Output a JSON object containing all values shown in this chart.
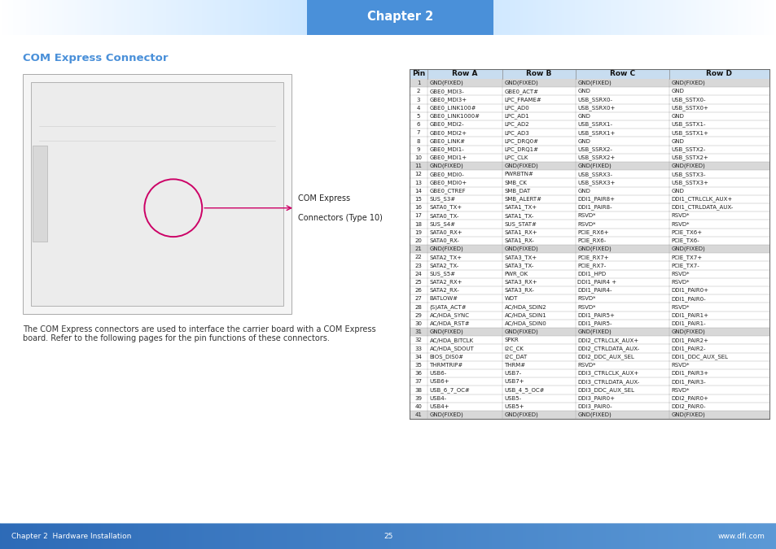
{
  "title": "Chapter 2",
  "section_title": "COM Express Connector",
  "footer_left": "Chapter 2  Hardware Installation",
  "footer_right": "www.dfi.com",
  "footer_center": "25",
  "description1": "The COM Express connectors are used to interface the carrier board with a COM Express",
  "description2": "board. Refer to the following pages for the pin functions of these connectors.",
  "connector_label_line1": "COM Express",
  "connector_label_line2": "Connectors (Type 10)",
  "table_headers": [
    "Pin",
    "Row A",
    "Row B",
    "Row C",
    "Row D"
  ],
  "table_data": [
    [
      "1",
      "GND(FIXED)",
      "GND(FIXED)",
      "GND(FIXED)",
      "GND(FIXED)"
    ],
    [
      "2",
      "GBE0_MDI3-",
      "GBE0_ACT#",
      "GND",
      "GND"
    ],
    [
      "3",
      "GBE0_MDI3+",
      "LPC_FRAME#",
      "USB_SSRX0-",
      "USB_SSTX0-"
    ],
    [
      "4",
      "GBE0_LINK100#",
      "LPC_AD0",
      "USB_SSRX0+",
      "USB_SSTX0+"
    ],
    [
      "5",
      "GBE0_LINK1000#",
      "LPC_AD1",
      "GND",
      "GND"
    ],
    [
      "6",
      "GBE0_MDI2-",
      "LPC_AD2",
      "USB_SSRX1-",
      "USB_SSTX1-"
    ],
    [
      "7",
      "GBE0_MDI2+",
      "LPC_AD3",
      "USB_SSRX1+",
      "USB_SSTX1+"
    ],
    [
      "8",
      "GBE0_LINK#",
      "LPC_DRQ0#",
      "GND",
      "GND"
    ],
    [
      "9",
      "GBE0_MDI1-",
      "LPC_DRQ1#",
      "USB_SSRX2-",
      "USB_SSTX2-"
    ],
    [
      "10",
      "GBE0_MDI1+",
      "LPC_CLK",
      "USB_SSRX2+",
      "USB_SSTX2+"
    ],
    [
      "11",
      "GND(FIXED)",
      "GND(FIXED)",
      "GND(FIXED)",
      "GND(FIXED)"
    ],
    [
      "12",
      "GBE0_MDI0-",
      "PWRBTN#",
      "USB_SSRX3-",
      "USB_SSTX3-"
    ],
    [
      "13",
      "GBE0_MDI0+",
      "SMB_CK",
      "USB_SSRX3+",
      "USB_SSTX3+"
    ],
    [
      "14",
      "GBE0_CTREF",
      "SMB_DAT",
      "GND",
      "GND"
    ],
    [
      "15",
      "SUS_S3#",
      "SMB_ALERT#",
      "DDI1_PAIR8+",
      "DDI1_CTRLCLK_AUX+"
    ],
    [
      "16",
      "SATA0_TX+",
      "SATA1_TX+",
      "DDI1_PAIR8-",
      "DDI1_CTRLDATA_AUX-"
    ],
    [
      "17",
      "SATA0_TX-",
      "SATA1_TX-",
      "RSVD*",
      "RSVD*"
    ],
    [
      "18",
      "SUS_S4#",
      "SUS_STAT#",
      "RSVD*",
      "RSVD*"
    ],
    [
      "19",
      "SATA0_RX+",
      "SATA1_RX+",
      "PCIE_RX6+",
      "PCIE_TX6+"
    ],
    [
      "20",
      "SATA0_RX-",
      "SATA1_RX-",
      "PCIE_RX6-",
      "PCIE_TX6-"
    ],
    [
      "21",
      "GND(FIXED)",
      "GND(FIXED)",
      "GND(FIXED)",
      "GND(FIXED)"
    ],
    [
      "22",
      "SATA2_TX+",
      "SATA3_TX+",
      "PCIE_RX7+",
      "PCIE_TX7+"
    ],
    [
      "23",
      "SATA2_TX-",
      "SATA3_TX-",
      "PCIE_RX7-",
      "PCIE_TX7-"
    ],
    [
      "24",
      "SUS_S5#",
      "PWR_OK",
      "DDI1_HPD",
      "RSVD*"
    ],
    [
      "25",
      "SATA2_RX+",
      "SATA3_RX+",
      "DDI1_PAIR4 +",
      "RSVD*"
    ],
    [
      "26",
      "SATA2_RX-",
      "SATA3_RX-",
      "DDI1_PAIR4-",
      "DDI1_PAIR0+"
    ],
    [
      "27",
      "BATLOW#",
      "WDT",
      "RSVD*",
      "DDI1_PAIR0-"
    ],
    [
      "28",
      "(S)ATA_ACT#",
      "AC/HDA_SDIN2",
      "RSVD*",
      "RSVD*"
    ],
    [
      "29",
      "AC/HDA_SYNC",
      "AC/HDA_SDIN1",
      "DDI1_PAIR5+",
      "DDI1_PAIR1+"
    ],
    [
      "30",
      "AC/HDA_RST#",
      "AC/HDA_SDIN0",
      "DDI1_PAIR5-",
      "DDI1_PAIR1-"
    ],
    [
      "31",
      "GND(FIXED)",
      "GND(FIXED)",
      "GND(FIXED)",
      "GND(FIXED)"
    ],
    [
      "32",
      "AC/HDA_BITCLK",
      "SPKR",
      "DDI2_CTRLCLK_AUX+",
      "DDI1_PAIR2+"
    ],
    [
      "33",
      "AC/HDA_SDOUT",
      "I2C_CK",
      "DDI2_CTRLDATA_AUX-",
      "DDI1_PAIR2-"
    ],
    [
      "34",
      "BIOS_DIS0#",
      "I2C_DAT",
      "DDI2_DDC_AUX_SEL",
      "DDI1_DDC_AUX_SEL"
    ],
    [
      "35",
      "THRMTRIP#",
      "THRM#",
      "RSVD*",
      "RSVD*"
    ],
    [
      "36",
      "USB6-",
      "USB7-",
      "DDI3_CTRLCLK_AUX+",
      "DDI1_PAIR3+"
    ],
    [
      "37",
      "USB6+",
      "USB7+",
      "DDI3_CTRLDATA_AUX-",
      "DDI1_PAIR3-"
    ],
    [
      "38",
      "USB_6_7_OC#",
      "USB_4_5_OC#",
      "DDI3_DDC_AUX_SEL",
      "RSVD*"
    ],
    [
      "39",
      "USB4-",
      "USB5-",
      "DDI3_PAIR0+",
      "DDI2_PAIR0+"
    ],
    [
      "40",
      "USB4+",
      "USB5+",
      "DDI3_PAIR0-",
      "DDI2_PAIR0-"
    ],
    [
      "41",
      "GND(FIXED)",
      "GND(FIXED)",
      "GND(FIXED)",
      "GND(FIXED)"
    ]
  ],
  "shaded_rows": [
    0,
    10,
    20,
    30,
    40
  ],
  "shade_color": "#d8d8d8",
  "table_bg": "#ffffff",
  "header_bg": "#c8ddf0",
  "title_bar_color": "#4a90d9",
  "title_text_color": "#ffffff",
  "section_title_color": "#4a90d9",
  "arrow_color": "#cc0066",
  "page_bg": "#ffffff",
  "footer_bg": "#3a7abf",
  "footer_text_color": "#ffffff",
  "header_gradient_left": "#ddeeff",
  "header_gradient_right": "#aaccee"
}
